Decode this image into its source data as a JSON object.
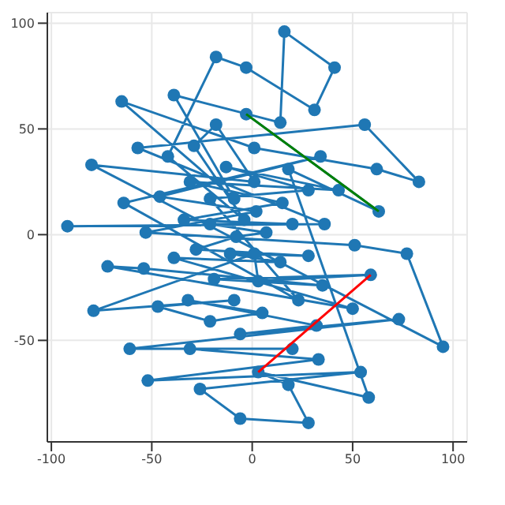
{
  "chart_data": {
    "type": "line",
    "xlim": [
      -102,
      107
    ],
    "ylim": [
      -98,
      105
    ],
    "xticks": [
      -100,
      -50,
      0,
      50,
      100
    ],
    "yticks": [
      -50,
      0,
      50,
      100
    ],
    "grid": true,
    "legend": false,
    "series": [
      {
        "marker": "circle",
        "color": "#1f77b4",
        "x": [
          -92,
          36,
          -57,
          56,
          83,
          62,
          1,
          -65,
          -9,
          -39,
          14,
          16,
          41,
          31,
          -3,
          -18,
          -42,
          -4,
          -29,
          -18,
          1,
          -80,
          95,
          77,
          51,
          -53,
          2,
          -46,
          34,
          -64,
          23,
          -21,
          28,
          -13,
          43,
          -31,
          15,
          -34,
          20,
          -21,
          7,
          -8,
          -28,
          28,
          -11,
          14,
          -39,
          50,
          -72,
          -54,
          35,
          -19,
          59,
          3,
          1,
          -79,
          -9,
          -47,
          -21,
          5,
          -32,
          32,
          -6,
          73,
          -61,
          20,
          -31,
          33,
          -52,
          54,
          -26,
          -6,
          28,
          18,
          3,
          58,
          18,
          63,
          -3
        ],
        "values": [
          4,
          5,
          41,
          52,
          25,
          31,
          41,
          63,
          17,
          66,
          53,
          96,
          79,
          59,
          79,
          84,
          37,
          7,
          42,
          52,
          25,
          33,
          -53,
          -9,
          -5,
          1,
          11,
          18,
          37,
          15,
          -31,
          17,
          21,
          32,
          21,
          25,
          15,
          7,
          5,
          5,
          1,
          -1,
          -7,
          -10,
          -9,
          -13,
          -11,
          -35,
          -15,
          -16,
          -24,
          -21,
          -19,
          -22,
          -9,
          -36,
          -31,
          -34,
          -41,
          -37,
          -31,
          -43,
          -47,
          -40,
          -54,
          -54,
          -54,
          -59,
          -69,
          -65,
          -73,
          -87,
          -89,
          -71,
          -65,
          -77,
          31,
          11,
          57
        ]
      },
      {
        "marker": "none",
        "color": "#008000",
        "x": [
          -3,
          63
        ],
        "values": [
          57,
          11
        ]
      },
      {
        "marker": "none",
        "color": "#ff0000",
        "x": [
          3,
          59
        ],
        "values": [
          -65,
          -19
        ]
      }
    ]
  }
}
